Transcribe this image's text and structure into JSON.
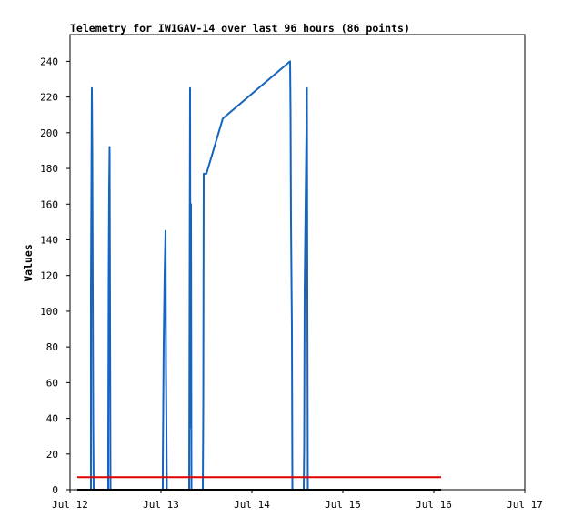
{
  "chart_data": {
    "type": "line",
    "title": "Telemetry for IW1GAV-14 over last 96 hours (86 points)",
    "ylabel": "Values",
    "xlabel": "",
    "x_ticks": [
      "Jul 12",
      "Jul 13",
      "Jul 14",
      "Jul 15",
      "Jul 16",
      "Jul 17"
    ],
    "y_ticks": [
      0,
      20,
      40,
      60,
      80,
      100,
      120,
      140,
      160,
      180,
      200,
      220,
      240
    ],
    "xlim": [
      0,
      5
    ],
    "ylim": [
      0,
      255
    ],
    "x_unit": "days since Jul 12",
    "grid": false,
    "legend": "none",
    "series": [
      {
        "color": "#1565c0",
        "points": [
          [
            0.23,
            0
          ],
          [
            0.23,
            112
          ],
          [
            0.24,
            225
          ],
          [
            0.245,
            188
          ],
          [
            0.25,
            112
          ],
          [
            0.255,
            38
          ],
          [
            0.26,
            0
          ],
          [
            0.42,
            0
          ],
          [
            0.42,
            25
          ],
          [
            0.425,
            120
          ],
          [
            0.43,
            168
          ],
          [
            0.435,
            192
          ],
          [
            0.44,
            97
          ],
          [
            0.445,
            0
          ],
          [
            1.02,
            0
          ],
          [
            1.02,
            12
          ],
          [
            1.03,
            82
          ],
          [
            1.04,
            121
          ],
          [
            1.05,
            145
          ],
          [
            1.055,
            68
          ],
          [
            1.06,
            35
          ],
          [
            1.065,
            0
          ],
          [
            1.31,
            0
          ],
          [
            1.315,
            112
          ],
          [
            1.32,
            225
          ],
          [
            1.325,
            35
          ],
          [
            1.33,
            160
          ],
          [
            1.335,
            0
          ],
          [
            1.46,
            0
          ],
          [
            1.465,
            46
          ],
          [
            1.47,
            177
          ],
          [
            1.5,
            177
          ],
          [
            1.68,
            208
          ],
          [
            2.42,
            240
          ],
          [
            2.425,
            212
          ],
          [
            2.43,
            150
          ],
          [
            2.44,
            90
          ],
          [
            2.445,
            0
          ],
          [
            2.57,
            0
          ],
          [
            2.575,
            25
          ],
          [
            2.58,
            112
          ],
          [
            2.59,
            158
          ],
          [
            2.6,
            202
          ],
          [
            2.605,
            225
          ],
          [
            2.61,
            112
          ],
          [
            2.615,
            0
          ]
        ]
      },
      {
        "color": "#e00000",
        "points": [
          [
            0.08,
            7
          ],
          [
            4.08,
            7
          ]
        ]
      },
      {
        "color": "#000000",
        "points": [
          [
            0.08,
            0
          ],
          [
            4.08,
            0
          ]
        ]
      }
    ]
  }
}
